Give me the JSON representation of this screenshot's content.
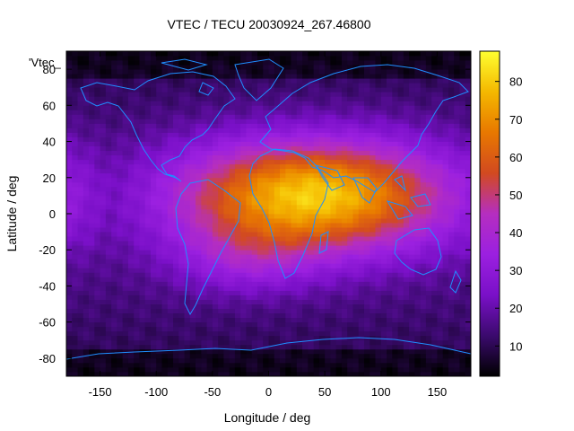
{
  "chart_data": {
    "type": "heatmap",
    "title": "VTEC / TECU 20030924_267.46800",
    "xlabel": "Longitude / deg",
    "ylabel": "Latitude / deg",
    "xlim": [
      -180,
      180
    ],
    "ylim": [
      -90,
      90
    ],
    "xticks": [
      -150,
      -100,
      -50,
      0,
      50,
      100,
      150
    ],
    "yticks": [
      -80,
      -60,
      -40,
      -20,
      0,
      20,
      40,
      60,
      80
    ],
    "colorbar": {
      "min": 2,
      "max": 88,
      "ticks": [
        10,
        20,
        30,
        40,
        50,
        60,
        70,
        80
      ],
      "colors": [
        "#000000",
        "#3b0a6e",
        "#7a10c8",
        "#9b20e0",
        "#b52ec0",
        "#d24a20",
        "#e87800",
        "#f4b800",
        "#ffff30"
      ]
    },
    "series_label": "'Vtec_",
    "overlay": "continent coastlines",
    "overlay_color": "#1f8fff",
    "peak": {
      "lon": 40,
      "lat": 10,
      "value": 75
    }
  }
}
